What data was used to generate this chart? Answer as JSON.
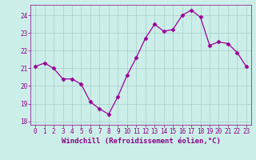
{
  "x": [
    0,
    1,
    2,
    3,
    4,
    5,
    6,
    7,
    8,
    9,
    10,
    11,
    12,
    13,
    14,
    15,
    16,
    17,
    18,
    19,
    20,
    21,
    22,
    23
  ],
  "y": [
    21.1,
    21.3,
    21.0,
    20.4,
    20.4,
    20.1,
    19.1,
    18.7,
    18.4,
    19.4,
    20.6,
    21.6,
    22.7,
    23.5,
    23.1,
    23.2,
    24.0,
    24.3,
    23.9,
    22.3,
    22.5,
    22.4,
    21.9,
    21.1
  ],
  "line_color": "#990099",
  "marker": "D",
  "marker_size": 2.5,
  "bg_color": "#cceee8",
  "grid_color": "#aacccc",
  "xlabel": "Windchill (Refroidissement éolien,°C)",
  "ylabel": "",
  "ylim": [
    17.8,
    24.6
  ],
  "xlim": [
    -0.5,
    23.5
  ],
  "yticks": [
    18,
    19,
    20,
    21,
    22,
    23,
    24
  ],
  "xticks": [
    0,
    1,
    2,
    3,
    4,
    5,
    6,
    7,
    8,
    9,
    10,
    11,
    12,
    13,
    14,
    15,
    16,
    17,
    18,
    19,
    20,
    21,
    22,
    23
  ],
  "tick_color": "#880088",
  "label_color": "#880088",
  "tick_fontsize": 5.5,
  "xlabel_fontsize": 6.5,
  "spine_color": "#880088"
}
